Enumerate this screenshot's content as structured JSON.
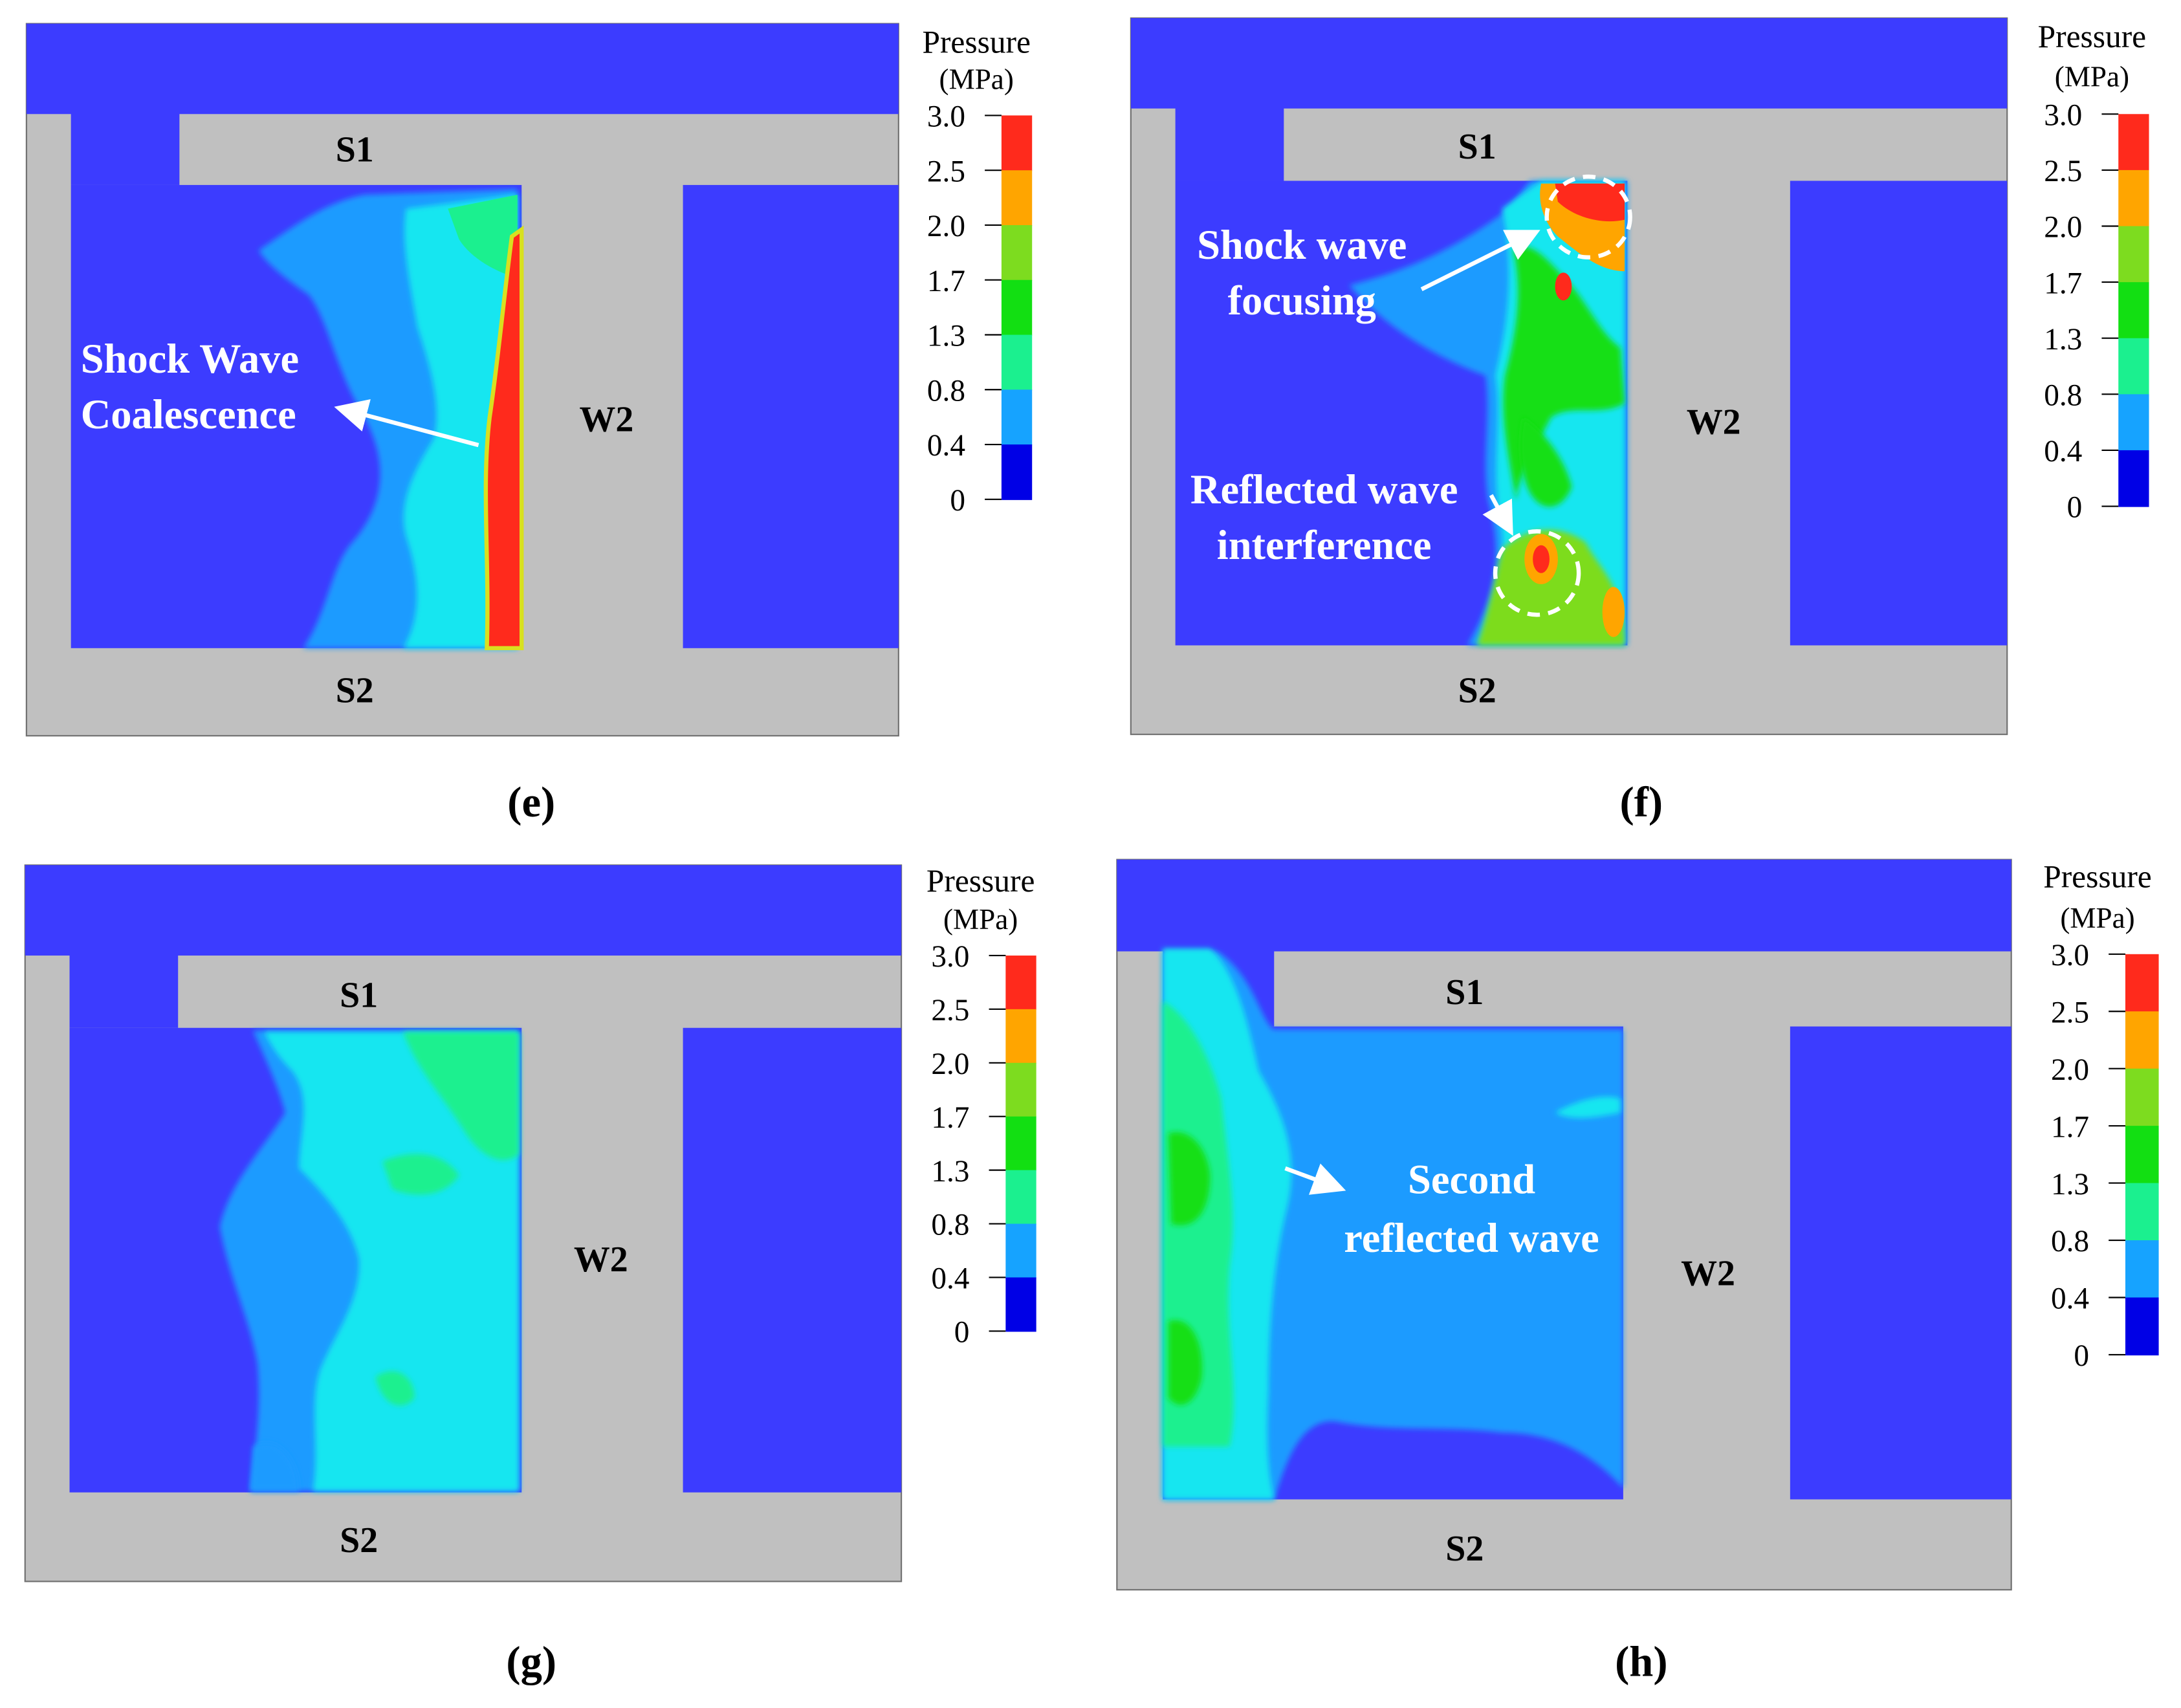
{
  "colors": {
    "background": "#ffffff",
    "fluid": "#3c3cff",
    "wall": "#c0c0c0",
    "wall_border": "#707070",
    "annotation": "#ffffff",
    "label": "#000000"
  },
  "legend": {
    "title": "Pressure",
    "unit": "(MPa)",
    "ticks": [
      "3.0",
      "2.5",
      "2.0",
      "1.7",
      "1.3",
      "0.8",
      "0.4",
      "0"
    ],
    "band_colors": [
      "#ff2a1c",
      "#ffa500",
      "#7ddc1f",
      "#12df12",
      "#1bf08f",
      "#16a3ff",
      "#0000e6"
    ]
  },
  "panels": [
    {
      "id": "e",
      "caption": "(e)",
      "labels": {
        "top": "S1",
        "bottom": "S2",
        "wall": "W2"
      },
      "annotations": [
        "Shock Wave",
        "Coalescence"
      ]
    },
    {
      "id": "f",
      "caption": "(f)",
      "labels": {
        "top": "S1",
        "bottom": "S2",
        "wall": "W2"
      },
      "annotations": [
        "Shock wave",
        "focusing",
        "Reflected wave",
        "interference"
      ]
    },
    {
      "id": "g",
      "caption": "(g)",
      "labels": {
        "top": "S1",
        "bottom": "S2",
        "wall": "W2"
      },
      "annotations": []
    },
    {
      "id": "h",
      "caption": "(h)",
      "labels": {
        "top": "S1",
        "bottom": "S2",
        "wall": "W2"
      },
      "annotations": [
        "Second",
        "reflected wave"
      ]
    }
  ]
}
